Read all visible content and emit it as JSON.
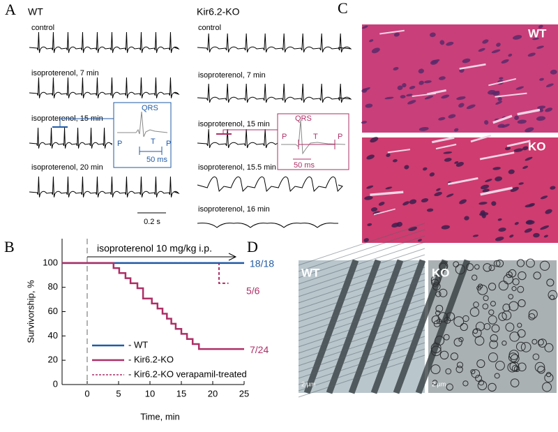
{
  "panel_labels": [
    "A",
    "B",
    "C",
    "D"
  ],
  "panel_a": {
    "wt_title": "WT",
    "ko_title": "Kir6.2-KO",
    "wt_traces": [
      "control",
      "isoproterenol, 7 min",
      "isoproterenol, 15 min",
      "isoproterenol, 20 min"
    ],
    "ko_traces": [
      "control",
      "isoproterenol, 7 min",
      "isoproterenol, 15 min",
      "isoproterenol, 15.5 min",
      "isoproterenol, 16 min"
    ],
    "scale_bar": "0.2 s",
    "wt_inset": {
      "qrs": "QRS",
      "p1": "P",
      "t": "T",
      "p2": "P",
      "scale": "50 ms"
    },
    "ko_inset": {
      "qrs": "QRS",
      "p1": "P",
      "t": "T",
      "p2": "P",
      "scale": "50 ms"
    }
  },
  "panel_c": {
    "top": "WT",
    "bottom": "KO"
  },
  "panel_d": {
    "left": "WT",
    "right": "KO",
    "left_scale": "2 µm",
    "right_scale": "2 µm"
  },
  "chart_data": {
    "type": "line",
    "drawstyle": "steps-post",
    "arrow_label": "isoproterenol 10 mg/kg i.p.",
    "xlabel": "Time, min",
    "ylabel": "Survivorship, %",
    "xlim": [
      -4,
      25
    ],
    "ylim": [
      0,
      120
    ],
    "xticks": [
      0,
      5,
      10,
      15,
      20,
      25
    ],
    "yticks": [
      0,
      20,
      40,
      60,
      80,
      100
    ],
    "vline": 0,
    "series": [
      {
        "name": "- WT",
        "color": "#1f5aa6",
        "dashed": false,
        "end_label": "18/18",
        "x": [
          -4,
          25
        ],
        "values": [
          100,
          100
        ]
      },
      {
        "name": "- Kir6.2-KO",
        "color": "#ad2f66",
        "dashed": false,
        "end_label": "7/24",
        "x": [
          -4,
          4.2,
          5.1,
          6.1,
          6.9,
          8,
          8.9,
          10.3,
          11.2,
          12,
          12.7,
          13.4,
          14.1,
          15,
          15.9,
          16.8,
          17.8,
          25
        ],
        "values": [
          100,
          95.8,
          91.7,
          87.5,
          83.3,
          79.2,
          70.8,
          66.7,
          62.5,
          58.3,
          54.2,
          50,
          45.8,
          41.7,
          37.5,
          33.3,
          29.2,
          29.2
        ]
      },
      {
        "name": "- Kir6.2-KO verapamil-treated",
        "color": "#ad2f66",
        "dashed": true,
        "end_label": "5/6",
        "x": [
          -4,
          21,
          22.5
        ],
        "values": [
          100,
          83.3,
          83.3
        ]
      }
    ]
  }
}
